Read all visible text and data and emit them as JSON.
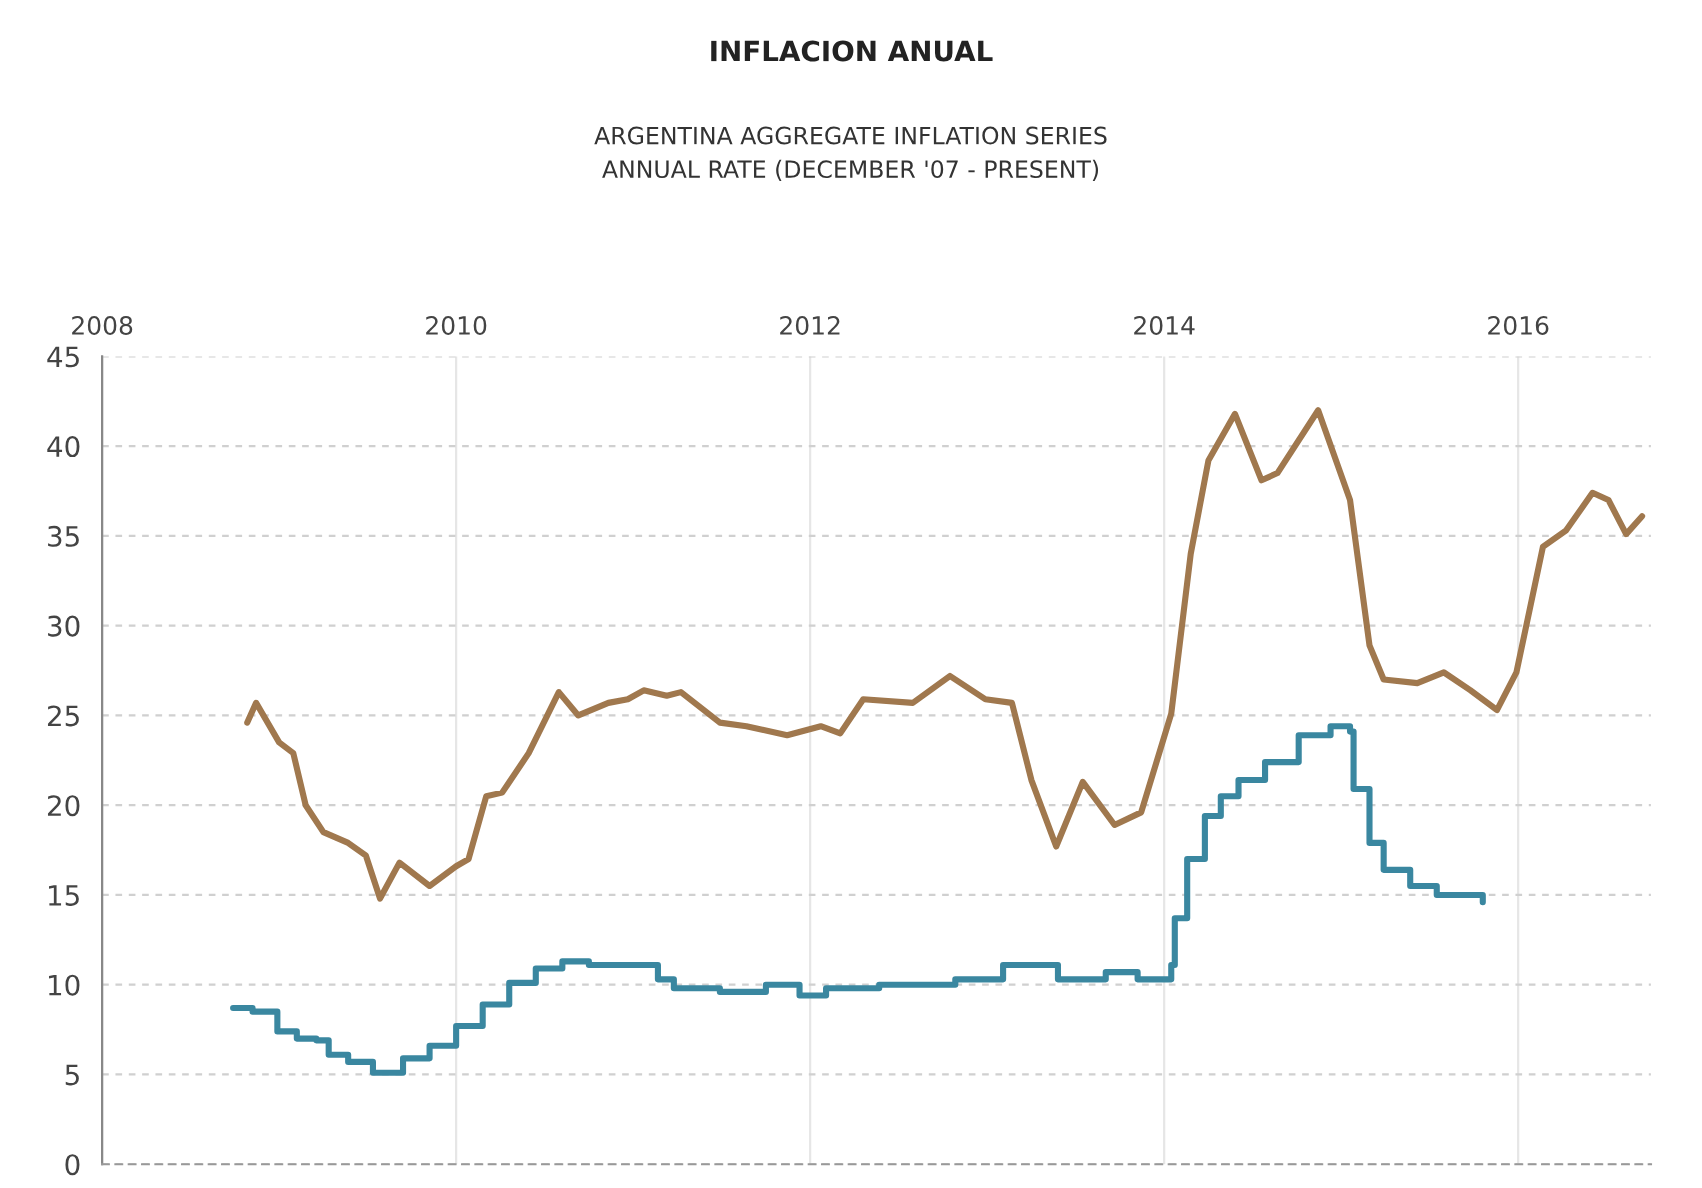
{
  "chart_data": {
    "type": "line",
    "title": "INFLACION ANUAL",
    "subtitle": "ARGENTINA AGGREGATE INFLATION SERIES\nANNUAL RATE (DECEMBER '07 - PRESENT)",
    "xlim": [
      2008,
      2016.75
    ],
    "xticks": [
      2008,
      2010,
      2012,
      2014,
      2016
    ],
    "ylim": [
      0,
      45
    ],
    "yticks": [
      0,
      5,
      10,
      15,
      20,
      25,
      30,
      35,
      40,
      45
    ],
    "grid": true,
    "series": [
      {
        "color": "#a0784e",
        "x": [
          2008.82,
          2008.87,
          2009.0,
          2009.08,
          2009.15,
          2009.25,
          2009.39,
          2009.49,
          2009.57,
          2009.68,
          2009.85,
          2010.0,
          2010.07,
          2010.17,
          2010.26,
          2010.41,
          2010.58,
          2010.69,
          2010.86,
          2010.97,
          2011.06,
          2011.19,
          2011.27,
          2011.49,
          2011.64,
          2011.87,
          2012.06,
          2012.17,
          2012.3,
          2012.58,
          2012.79,
          2012.99,
          2013.14,
          2013.25,
          2013.39,
          2013.54,
          2013.72,
          2013.87,
          2014.04,
          2014.15,
          2014.25,
          2014.4,
          2014.55,
          2014.64,
          2014.87,
          2015.05,
          2015.16,
          2015.24,
          2015.43,
          2015.58,
          2015.73,
          2015.88,
          2015.99,
          2016.14,
          2016.27,
          2016.42,
          2016.51,
          2016.61,
          2016.7
        ],
        "values": [
          24.6,
          25.7,
          23.5,
          22.9,
          20.0,
          18.5,
          17.9,
          17.2,
          14.8,
          16.8,
          15.5,
          16.6,
          17.0,
          20.5,
          20.7,
          22.9,
          26.3,
          25.0,
          25.7,
          25.9,
          26.4,
          26.1,
          26.3,
          24.6,
          24.4,
          23.9,
          24.4,
          24.0,
          25.9,
          25.7,
          27.2,
          25.9,
          25.7,
          21.4,
          17.7,
          21.3,
          18.9,
          19.6,
          25.1,
          34.0,
          39.2,
          41.8,
          38.1,
          38.5,
          42.0,
          37.0,
          28.9,
          27.0,
          26.8,
          27.4,
          26.4,
          25.3,
          27.4,
          34.4,
          35.3,
          37.4,
          37.0,
          35.1,
          36.1
        ]
      },
      {
        "type": "step",
        "color": "#3a87a0",
        "x": [
          2008.74,
          2008.85,
          2008.99,
          2009.1,
          2009.21,
          2009.28,
          2009.39,
          2009.53,
          2009.7,
          2009.85,
          2010.0,
          2010.15,
          2010.3,
          2010.45,
          2010.6,
          2010.75,
          2010.97,
          2011.14,
          2011.23,
          2011.49,
          2011.75,
          2011.94,
          2012.09,
          2012.39,
          2012.79,
          2012.82,
          2013.09,
          2013.4,
          2013.67,
          2013.85,
          2014.04,
          2014.06,
          2014.13,
          2014.23,
          2014.32,
          2014.42,
          2014.57,
          2014.76,
          2014.94,
          2015.05,
          2015.07,
          2015.16,
          2015.24,
          2015.39,
          2015.54,
          2015.8
        ],
        "values": [
          8.7,
          8.5,
          7.4,
          7.0,
          6.9,
          6.1,
          5.7,
          5.1,
          5.9,
          6.6,
          7.7,
          8.9,
          10.1,
          10.9,
          11.3,
          11.1,
          11.1,
          10.3,
          9.8,
          9.6,
          10.0,
          9.4,
          9.8,
          10.0,
          10.0,
          10.3,
          11.1,
          10.3,
          10.7,
          10.3,
          11.1,
          13.7,
          17.0,
          19.4,
          20.5,
          21.4,
          22.4,
          23.9,
          24.4,
          24.1,
          20.9,
          17.9,
          16.4,
          15.5,
          15.0,
          14.6
        ]
      }
    ]
  }
}
